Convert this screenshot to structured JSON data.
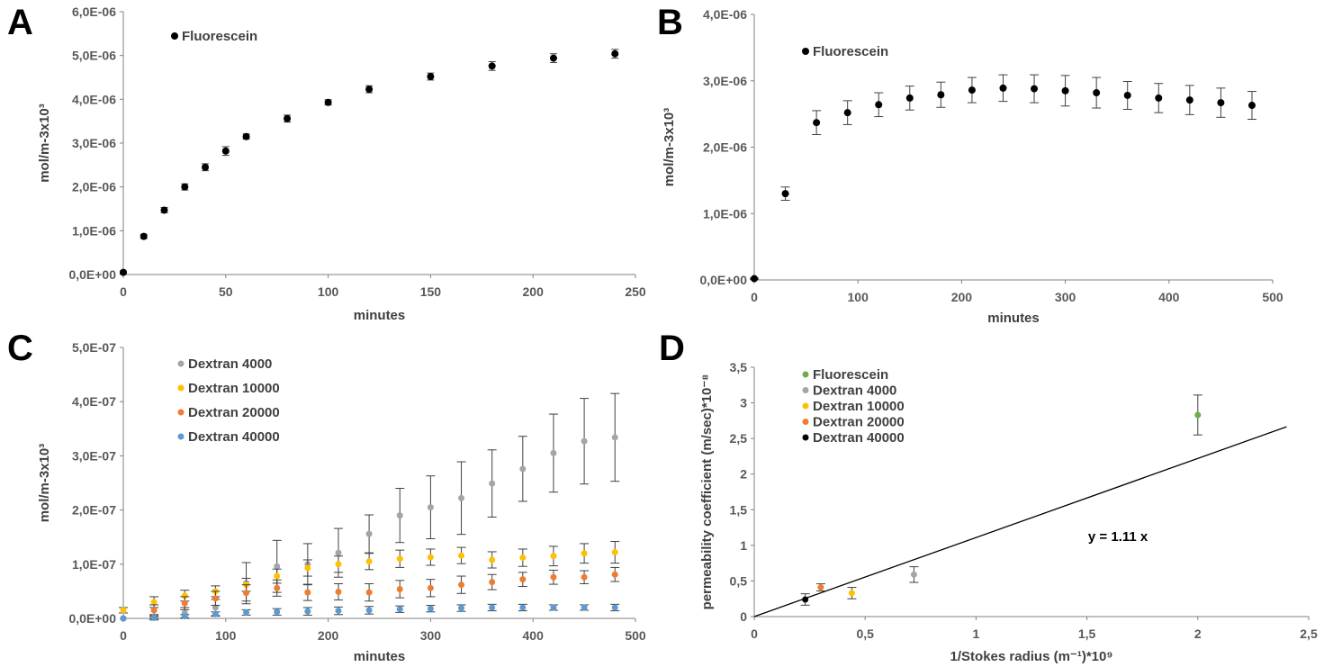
{
  "chart_data": [
    {
      "panel": "A",
      "type": "scatter",
      "xlabel": "minutes",
      "ylabel": "mol/m-3x10³",
      "xlim": [
        0,
        250
      ],
      "ylim": [
        0,
        6e-06
      ],
      "xticks": [
        "0",
        "50",
        "100",
        "150",
        "200",
        "250"
      ],
      "yticks": [
        "0,0E+00",
        "1,0E-06",
        "2,0E-06",
        "3,0E-06",
        "4,0E-06",
        "5,0E-06",
        "6,0E-06"
      ],
      "legend_position": "top-left",
      "series": [
        {
          "name": "Fluorescein",
          "color": "#000000",
          "x": [
            0,
            10,
            20,
            30,
            40,
            50,
            60,
            80,
            100,
            120,
            150,
            180,
            210,
            240
          ],
          "y": [
            5e-08,
            8.7e-07,
            1.47e-06,
            2e-06,
            2.45e-06,
            2.82e-06,
            3.15e-06,
            3.56e-06,
            3.93e-06,
            4.23e-06,
            4.52e-06,
            4.76e-06,
            4.94e-06,
            5.04e-06
          ],
          "err": [
            3e-08,
            5e-08,
            6e-08,
            7e-08,
            8e-08,
            1e-07,
            6e-08,
            8e-08,
            6e-08,
            8e-08,
            8e-08,
            1e-07,
            1e-07,
            1e-07
          ]
        }
      ]
    },
    {
      "panel": "B",
      "type": "scatter",
      "xlabel": "minutes",
      "ylabel": "mol/m-3x10³",
      "xlim": [
        0,
        500
      ],
      "ylim": [
        0,
        4e-06
      ],
      "xticks": [
        "0",
        "100",
        "200",
        "300",
        "400",
        "500"
      ],
      "yticks": [
        "0,0E+00",
        "1,0E-06",
        "2,0E-06",
        "3,0E-06",
        "4,0E-06"
      ],
      "legend_position": "top-left",
      "series": [
        {
          "name": "Fluorescein",
          "color": "#000000",
          "x": [
            0,
            30,
            60,
            90,
            120,
            150,
            180,
            210,
            240,
            270,
            300,
            330,
            360,
            390,
            420,
            450,
            480
          ],
          "y": [
            2e-08,
            1.3e-06,
            2.37e-06,
            2.52e-06,
            2.64e-06,
            2.74e-06,
            2.79e-06,
            2.86e-06,
            2.89e-06,
            2.88e-06,
            2.85e-06,
            2.82e-06,
            2.78e-06,
            2.74e-06,
            2.71e-06,
            2.67e-06,
            2.63e-06
          ],
          "err": [
            1e-08,
            1e-07,
            1.8e-07,
            1.8e-07,
            1.8e-07,
            1.8e-07,
            1.9e-07,
            1.9e-07,
            2e-07,
            2.1e-07,
            2.3e-07,
            2.3e-07,
            2.1e-07,
            2.2e-07,
            2.2e-07,
            2.2e-07,
            2.1e-07
          ]
        }
      ]
    },
    {
      "panel": "C",
      "type": "scatter",
      "xlabel": "minutes",
      "ylabel": "mol/m-3x10³",
      "xlim": [
        0,
        500
      ],
      "ylim": [
        0,
        5e-07
      ],
      "xticks": [
        "0",
        "100",
        "200",
        "300",
        "400",
        "500"
      ],
      "yticks": [
        "0,0E+00",
        "1,0E-07",
        "2,0E-07",
        "3,0E-07",
        "4,0E-07",
        "5,0E-07"
      ],
      "legend_position": "top-left",
      "series": [
        {
          "name": "Dextran 4000",
          "color": "#a5a5a5",
          "x": [
            0,
            30,
            60,
            90,
            120,
            150,
            180,
            210,
            240,
            270,
            300,
            330,
            360,
            390,
            420,
            450,
            480
          ],
          "y": [
            0,
            2e-09,
            1e-08,
            2e-08,
            6.5e-08,
            9.6e-08,
            1e-07,
            1.21e-07,
            1.56e-07,
            1.9e-07,
            2.05e-07,
            2.22e-07,
            2.49e-07,
            2.76e-07,
            3.05e-07,
            3.27e-07,
            3.34e-07
          ],
          "err": [
            0,
            5e-09,
            1e-08,
            1.5e-08,
            3.8e-08,
            4.8e-08,
            3.8e-08,
            4.5e-08,
            3.5e-08,
            5e-08,
            5.8e-08,
            6.7e-08,
            6.2e-08,
            6e-08,
            7.2e-08,
            7.9e-08,
            8.1e-08
          ]
        },
        {
          "name": "Dextran 10000",
          "color": "#ffc000",
          "x": [
            0,
            30,
            60,
            90,
            120,
            150,
            180,
            210,
            240,
            270,
            300,
            330,
            360,
            390,
            420,
            450,
            480
          ],
          "y": [
            1.5e-08,
            3e-08,
            4.2e-08,
            5e-08,
            6.2e-08,
            7.8e-08,
            9.3e-08,
            1e-07,
            1.05e-07,
            1.1e-07,
            1.13e-07,
            1.16e-07,
            1.08e-07,
            1.12e-07,
            1.15e-07,
            1.2e-07,
            1.22e-07
          ],
          "err": [
            5e-09,
            1e-08,
            1e-08,
            1e-08,
            1.2e-08,
            1.3e-08,
            1.5e-08,
            1.5e-08,
            1.5e-08,
            1.6e-08,
            1.5e-08,
            1.5e-08,
            1.5e-08,
            1.6e-08,
            1.8e-08,
            1.8e-08,
            2e-08
          ]
        },
        {
          "name": "Dextran 20000",
          "color": "#ed7d31",
          "x": [
            0,
            30,
            60,
            90,
            120,
            150,
            180,
            210,
            240,
            270,
            300,
            330,
            360,
            390,
            420,
            450,
            480
          ],
          "y": [
            0,
            1.5e-08,
            2.8e-08,
            3.7e-08,
            4.7e-08,
            5.6e-08,
            4.8e-08,
            4.9e-08,
            4.8e-08,
            5.4e-08,
            5.6e-08,
            6.2e-08,
            6.7e-08,
            7.2e-08,
            7.6e-08,
            7.6e-08,
            8.1e-08
          ],
          "err": [
            0,
            1e-08,
            1.2e-08,
            1.3e-08,
            1.5e-08,
            1.5e-08,
            1.5e-08,
            1.5e-08,
            1.6e-08,
            1.6e-08,
            1.6e-08,
            1.6e-08,
            1.4e-08,
            1.3e-08,
            1.3e-08,
            1.2e-08,
            1.3e-08
          ]
        },
        {
          "name": "Dextran 40000",
          "color": "#5b9bd5",
          "x": [
            0,
            30,
            60,
            90,
            120,
            150,
            180,
            210,
            240,
            270,
            300,
            330,
            360,
            390,
            420,
            450,
            480
          ],
          "y": [
            0,
            1e-09,
            4e-09,
            8e-09,
            1.1e-08,
            1.2e-08,
            1.3e-08,
            1.4e-08,
            1.5e-08,
            1.7e-08,
            1.8e-08,
            1.9e-08,
            2e-08,
            2e-08,
            2e-08,
            2e-08,
            2e-08
          ],
          "err": [
            0,
            2e-09,
            3e-09,
            4e-09,
            5e-09,
            6e-09,
            7e-09,
            7e-09,
            7e-09,
            6e-09,
            6e-09,
            6e-09,
            6e-09,
            6e-09,
            5e-09,
            5e-09,
            6e-09
          ]
        }
      ]
    },
    {
      "panel": "D",
      "type": "scatter",
      "xlabel": "1/Stokes radius (m⁻¹)*10⁹",
      "ylabel": "permeability coefficient (m/sec)*10⁻⁸",
      "xlim": [
        0,
        2.5
      ],
      "ylim": [
        0,
        3.5
      ],
      "xticks": [
        "0",
        "0,5",
        "1",
        "1,5",
        "2",
        "2,5"
      ],
      "yticks": [
        "0",
        "0,5",
        "1",
        "1,5",
        "2",
        "2,5",
        "3",
        "3,5"
      ],
      "legend_position": "top-left",
      "trendline": {
        "equation": "y = 1.11 x",
        "slope": 1.11,
        "x": [
          0,
          2.4
        ]
      },
      "series": [
        {
          "name": "Fluorescein",
          "color": "#70ad47",
          "x": [
            2.0
          ],
          "y": [
            2.83
          ],
          "err": [
            0.28
          ]
        },
        {
          "name": "Dextran 4000",
          "color": "#a5a5a5",
          "x": [
            0.72
          ],
          "y": [
            0.59
          ],
          "err": [
            0.11
          ]
        },
        {
          "name": "Dextran 10000",
          "color": "#ffc000",
          "x": [
            0.44
          ],
          "y": [
            0.33
          ],
          "err": [
            0.08
          ]
        },
        {
          "name": "Dextran 20000",
          "color": "#ed7d31",
          "x": [
            0.3
          ],
          "y": [
            0.41
          ],
          "err": [
            0.05
          ]
        },
        {
          "name": "Dextran 40000",
          "color": "#000000",
          "x": [
            0.23
          ],
          "y": [
            0.24
          ],
          "err": [
            0.08
          ]
        }
      ]
    }
  ]
}
